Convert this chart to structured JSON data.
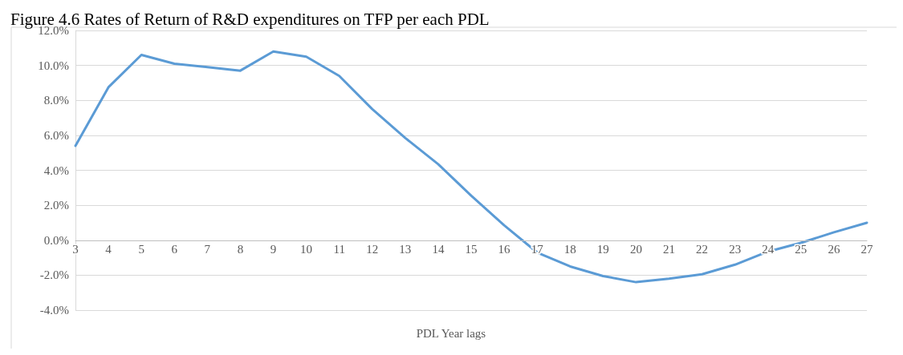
{
  "chart_data": {
    "type": "line",
    "title": "Figure 4.6 Rates of Return of R&D expenditures on TFP per each PDL",
    "xlabel": "PDL Year lags",
    "x": [
      3,
      4,
      5,
      6,
      7,
      8,
      9,
      10,
      11,
      12,
      13,
      14,
      15,
      16,
      17,
      18,
      19,
      20,
      21,
      22,
      23,
      24,
      25,
      26,
      27
    ],
    "series": [
      {
        "color": "#5b9bd5",
        "values": [
          5.4,
          8.75,
          10.6,
          10.1,
          9.9,
          9.7,
          10.8,
          10.5,
          9.4,
          7.5,
          5.85,
          4.35,
          2.55,
          0.85,
          -0.7,
          -1.5,
          -2.05,
          -2.4,
          -2.2,
          -1.95,
          -1.4,
          -0.65,
          -0.15,
          0.45,
          1.0
        ]
      }
    ],
    "xlim": [
      3,
      27
    ],
    "xticks": [
      3,
      4,
      5,
      6,
      7,
      8,
      9,
      10,
      11,
      12,
      13,
      14,
      15,
      16,
      17,
      18,
      19,
      20,
      21,
      22,
      23,
      24,
      25,
      26,
      27
    ],
    "ylim": [
      -4,
      12
    ],
    "yticks": [
      {
        "value": -4,
        "label": "-4.0%"
      },
      {
        "value": -2,
        "label": "-2.0%"
      },
      {
        "value": 0,
        "label": "0.0%"
      },
      {
        "value": 2,
        "label": "2.0%"
      },
      {
        "value": 4,
        "label": "4.0%"
      },
      {
        "value": 6,
        "label": "6.0%"
      },
      {
        "value": 8,
        "label": "8.0%"
      },
      {
        "value": 10,
        "label": "10.0%"
      },
      {
        "value": 12,
        "label": "12.0%"
      }
    ],
    "grid": "y",
    "marker": "none",
    "line_style": "solid"
  }
}
